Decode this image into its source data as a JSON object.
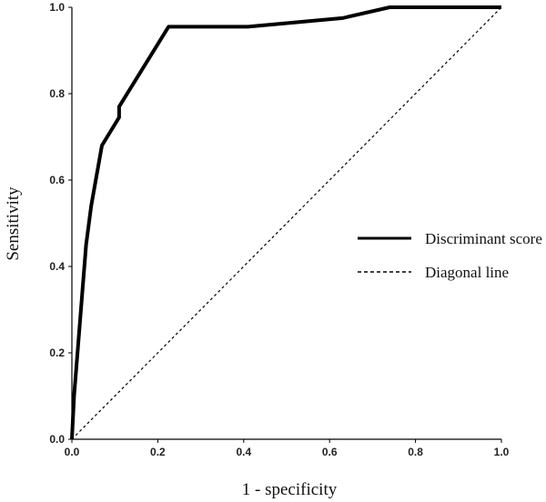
{
  "chart_data": {
    "type": "line",
    "xlabel": "1 - specificity",
    "ylabel": "Sensitivity",
    "xlim": [
      0,
      1
    ],
    "ylim": [
      0,
      1
    ],
    "xticks": [
      "0.0",
      "0.2",
      "0.4",
      "0.6",
      "0.8",
      "1.0"
    ],
    "yticks": [
      "0.0",
      "0.2",
      "0.4",
      "0.6",
      "0.8",
      "1.0"
    ],
    "grid": false,
    "legend_position": "center-right",
    "series": [
      {
        "name": "Discriminant score",
        "style": "solid",
        "color": "#000000",
        "x": [
          0.0,
          0.005,
          0.033,
          0.045,
          0.07,
          0.11,
          0.11,
          0.225,
          0.41,
          0.63,
          0.74,
          1.0
        ],
        "y": [
          0.0,
          0.1,
          0.45,
          0.54,
          0.68,
          0.745,
          0.77,
          0.955,
          0.955,
          0.975,
          1.0,
          1.0
        ]
      },
      {
        "name": "Diagonal line",
        "style": "dashed",
        "color": "#000000",
        "x": [
          0.0,
          1.0
        ],
        "y": [
          0.0,
          1.0
        ]
      }
    ]
  }
}
